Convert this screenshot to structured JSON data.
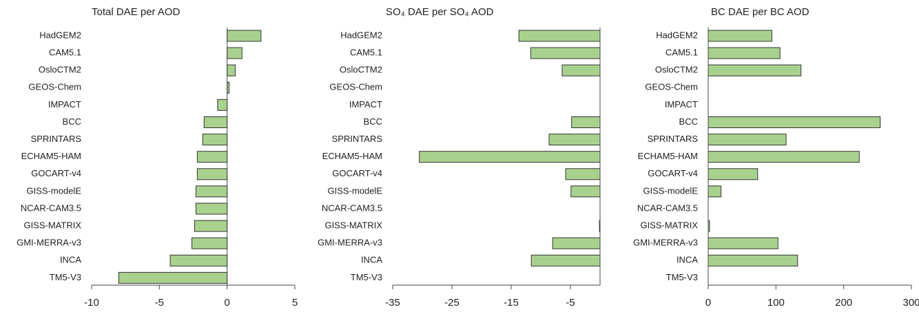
{
  "chart_data": [
    {
      "type": "bar",
      "orientation": "horizontal",
      "title": "Total DAE per AOD",
      "categories": [
        "HadGEM2",
        "CAM5.1",
        "OsloCTM2",
        "GEOS-Chem",
        "IMPACT",
        "BCC",
        "SPRINTARS",
        "ECHAM5-HAM",
        "GOCART-v4",
        "GISS-modelE",
        "NCAR-CAM3.5",
        "GISS-MATRIX",
        "GMI-MERRA-v3",
        "INCA",
        "TM5-V3"
      ],
      "values": [
        2.5,
        1.1,
        0.6,
        0.15,
        -0.7,
        -1.7,
        -1.8,
        -2.2,
        -2.2,
        -2.3,
        -2.3,
        -2.4,
        -2.6,
        -4.2,
        -8.0
      ],
      "color": "#a9d18e",
      "xlim": [
        -10,
        5
      ],
      "xticks": [
        -10,
        -5,
        0,
        5
      ]
    },
    {
      "type": "bar",
      "orientation": "horizontal",
      "title": "SO₄ DAE per SO₄ AOD",
      "categories": [
        "HadGEM2",
        "CAM5.1",
        "OsloCTM2",
        "GEOS-Chem",
        "IMPACT",
        "BCC",
        "SPRINTARS",
        "ECHAM5-HAM",
        "GOCART-v4",
        "GISS-modelE",
        "NCAR-CAM3.5",
        "GISS-MATRIX",
        "GMI-MERRA-v3",
        "INCA",
        "TM5-V3"
      ],
      "values": [
        -13.7,
        -11.7,
        -6.4,
        null,
        null,
        -4.8,
        -8.6,
        -30.5,
        -5.8,
        -4.9,
        null,
        -0.1,
        -8.0,
        -11.6,
        null
      ],
      "color": "#a9d18e",
      "xlim": [
        -35,
        0
      ],
      "xticks": [
        -35,
        -25,
        -15,
        -5
      ]
    },
    {
      "type": "bar",
      "orientation": "horizontal",
      "title": "BC DAE per BC AOD",
      "categories": [
        "HadGEM2",
        "CAM5.1",
        "OsloCTM2",
        "GEOS-Chem",
        "IMPACT",
        "BCC",
        "SPRINTARS",
        "ECHAM5-HAM",
        "GOCART-v4",
        "GISS-modelE",
        "NCAR-CAM3.5",
        "GISS-MATRIX",
        "GMI-MERRA-v3",
        "INCA",
        "TM5-V3"
      ],
      "values": [
        94,
        106,
        137,
        null,
        null,
        254,
        115,
        223,
        73,
        19,
        null,
        2,
        103,
        132,
        null
      ],
      "color": "#a9d18e",
      "xlim": [
        0,
        300
      ],
      "xticks": [
        0,
        100,
        200,
        300
      ]
    }
  ]
}
